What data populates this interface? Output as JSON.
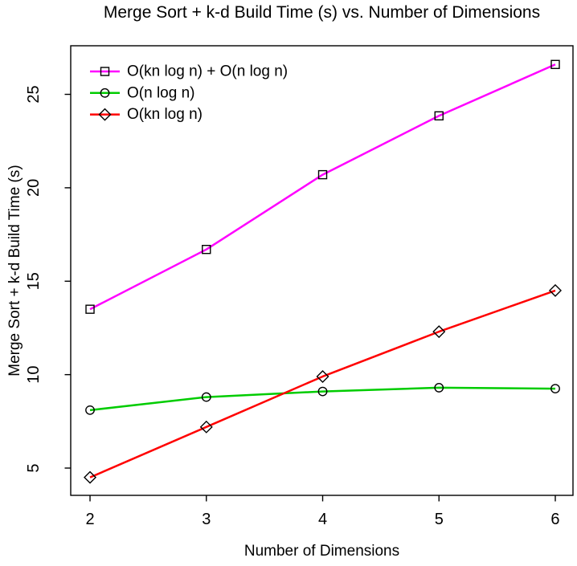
{
  "chart_data": {
    "type": "line",
    "title": "Merge Sort + k-d Build Time (s) vs. Number of Dimensions",
    "xlabel": "Number of Dimensions",
    "ylabel": "Merge Sort + k-d Build Time (s)",
    "x": [
      2,
      3,
      4,
      5,
      6
    ],
    "series": [
      {
        "name": "O(kn log n) + O(n log n)",
        "color": "#FF00FF",
        "marker": "square",
        "values": [
          13.5,
          16.7,
          20.7,
          23.85,
          26.6
        ]
      },
      {
        "name": "O(n log n)",
        "color": "#00CC00",
        "marker": "circle",
        "values": [
          8.1,
          8.8,
          9.1,
          9.3,
          9.25
        ]
      },
      {
        "name": "O(kn log n)",
        "color": "#FF0000",
        "marker": "diamond",
        "values": [
          4.5,
          7.2,
          9.9,
          12.3,
          14.5
        ]
      }
    ],
    "xticks": [
      2,
      3,
      4,
      5,
      6
    ],
    "yticks": [
      5,
      10,
      15,
      20,
      25
    ],
    "xlim": [
      1.834,
      6.152
    ],
    "ylim": [
      3.54,
      27.6
    ],
    "grid": false,
    "legend_position": "top-left",
    "marker_outline_color": "#000000",
    "axis_color": "#000000"
  }
}
